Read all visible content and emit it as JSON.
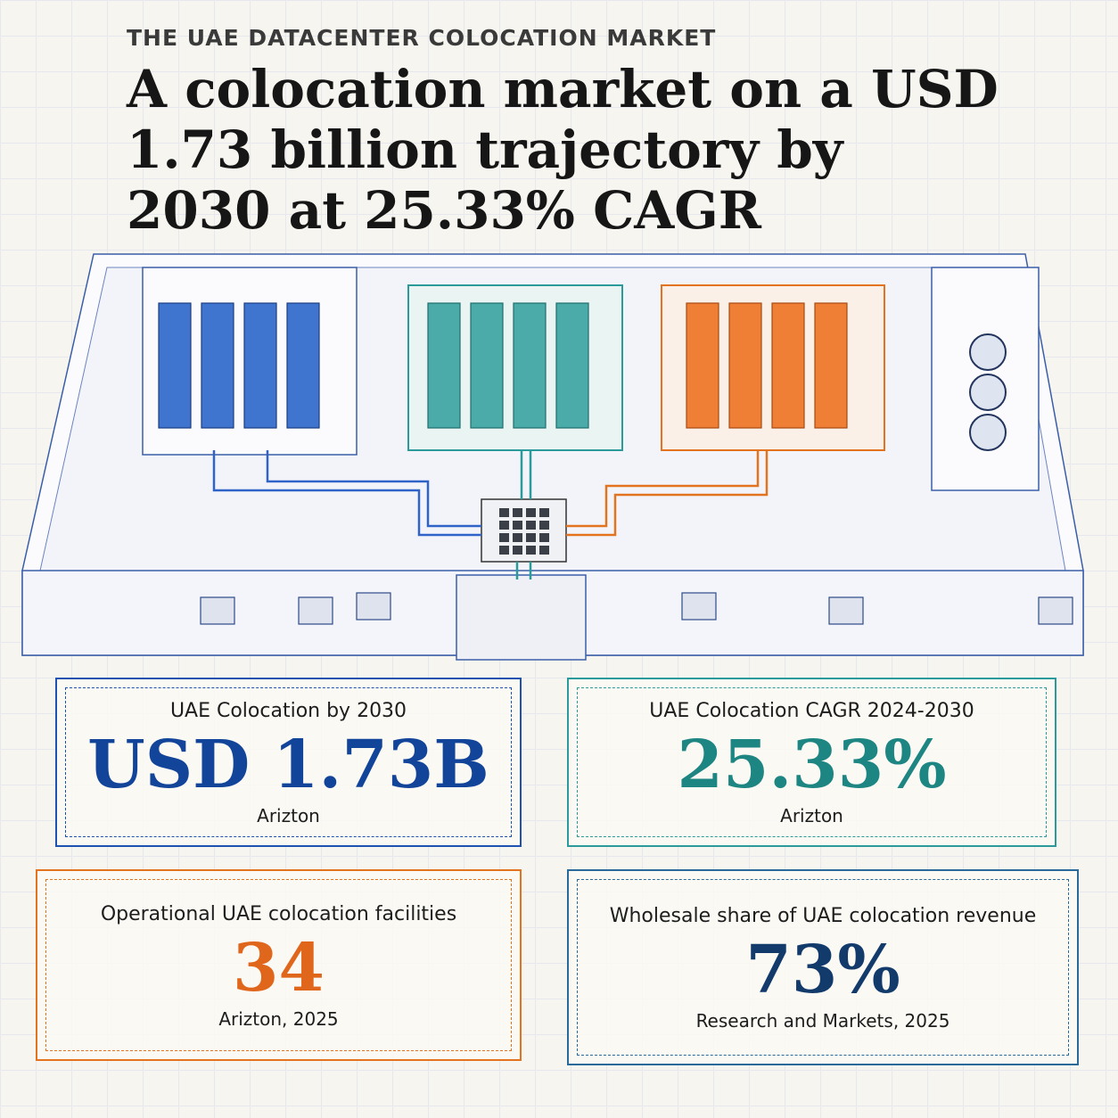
{
  "header": {
    "kicker": "THE UAE DATACENTER COLOCATION MARKET",
    "title": "A colocation market on a USD 1.73 billion trajectory by 2030 at 25.33% CAGR"
  },
  "cards": [
    {
      "label": "UAE Colocation by 2030",
      "value": "USD 1.73B",
      "source": "Arizton"
    },
    {
      "label": "UAE Colocation CAGR 2024-2030",
      "value": "25.33%",
      "source": "Arizton"
    },
    {
      "label": "Operational UAE colocation facilities",
      "value": "34",
      "source": "Arizton, 2025"
    },
    {
      "label": "Wholesale share of UAE colocation revenue",
      "value": "73%",
      "source": "Research and Markets, 2025"
    }
  ]
}
